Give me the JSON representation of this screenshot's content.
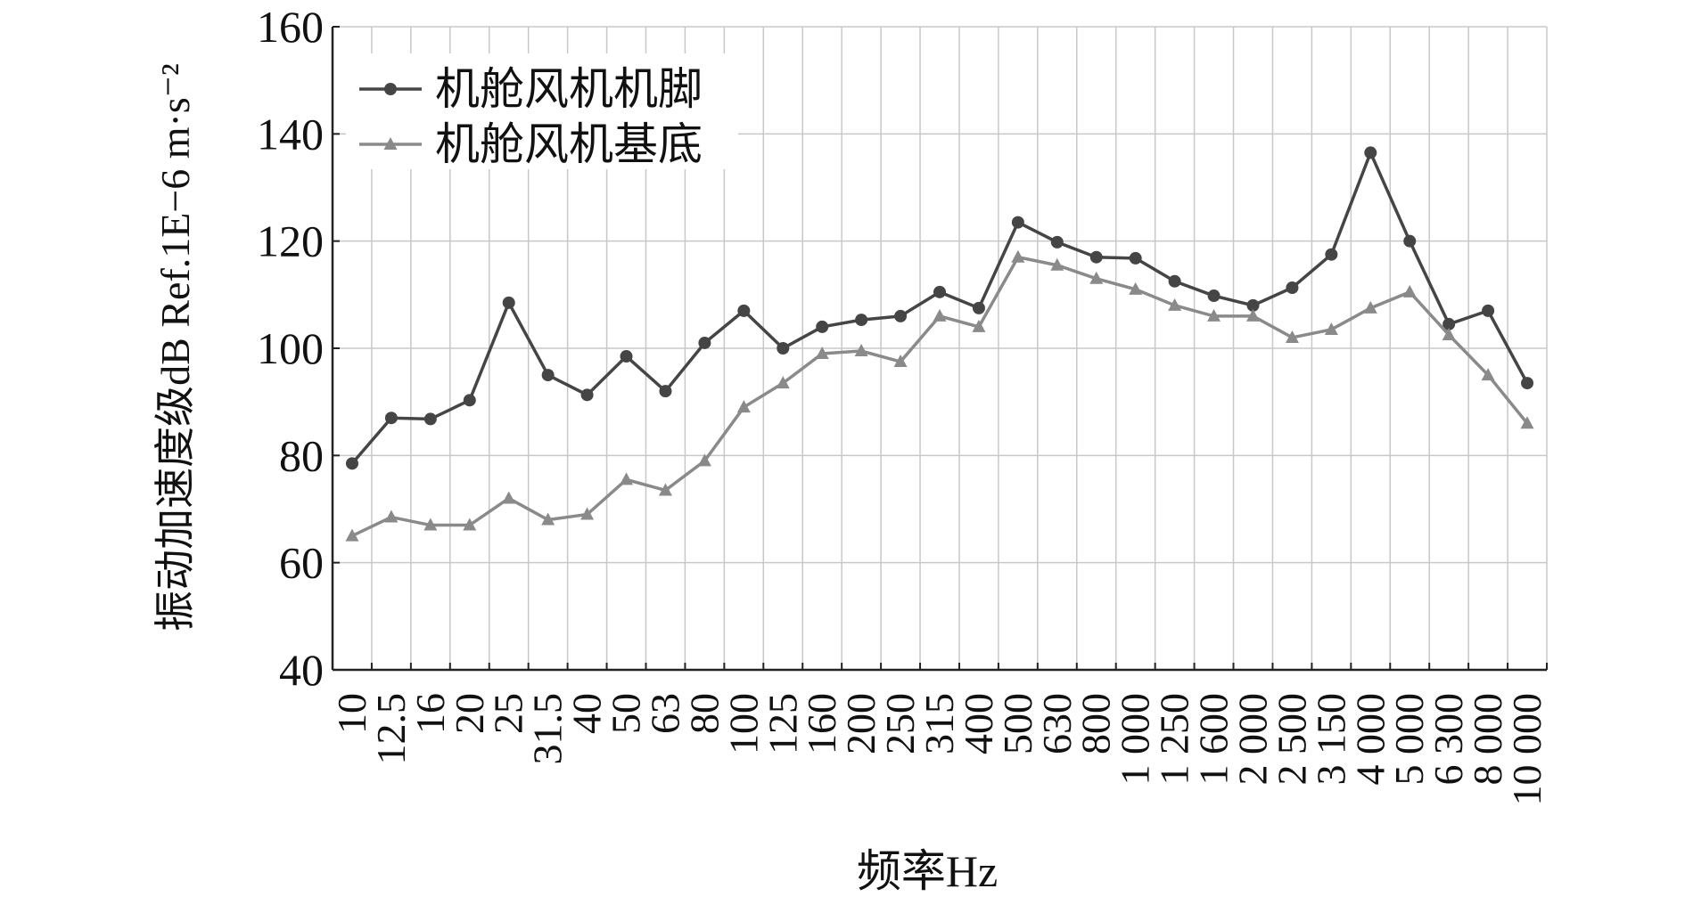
{
  "chart_data": {
    "type": "line",
    "xlabel": "频率Hz",
    "ylabel": "振动加速度级dB Ref.1E−6 m·s⁻²",
    "categories": [
      "10",
      "12.5",
      "16",
      "20",
      "25",
      "31.5",
      "40",
      "50",
      "63",
      "80",
      "100",
      "125",
      "160",
      "200",
      "250",
      "315",
      "400",
      "500",
      "630",
      "800",
      "1 000",
      "1 250",
      "1 600",
      "2 000",
      "2 500",
      "3 150",
      "4 000",
      "5 000",
      "6 300",
      "8 000",
      "10 000"
    ],
    "series": [
      {
        "name": "机舱风机机脚",
        "color": "#454545",
        "marker": "circle",
        "values": [
          78.5,
          87,
          86.8,
          90.3,
          108.5,
          95,
          91.3,
          98.5,
          92,
          101,
          107,
          100,
          104,
          105.3,
          106,
          110.5,
          107.5,
          123.5,
          119.8,
          117,
          116.8,
          112.5,
          109.8,
          108,
          111.3,
          117.5,
          136.5,
          120,
          104.5,
          107,
          93.5
        ]
      },
      {
        "name": "机舱风机基底",
        "color": "#8a8a8a",
        "marker": "triangle",
        "values": [
          65,
          68.5,
          67,
          67,
          72,
          68,
          69,
          75.5,
          73.5,
          79,
          89,
          93.5,
          99,
          99.5,
          97.5,
          106,
          104,
          117,
          115.5,
          113,
          111,
          108,
          106,
          106,
          102,
          103.5,
          107.5,
          110.5,
          102.5,
          95,
          86
        ]
      }
    ],
    "ylim": [
      40,
      160
    ],
    "yticks": [
      40,
      60,
      80,
      100,
      120,
      140,
      160
    ],
    "grid": true,
    "legend": "top-left"
  }
}
